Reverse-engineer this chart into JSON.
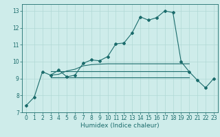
{
  "xlabel": "Humidex (Indice chaleur)",
  "xlim": [
    -0.5,
    23.5
  ],
  "ylim": [
    7,
    13.4
  ],
  "yticks": [
    7,
    8,
    9,
    10,
    11,
    12,
    13
  ],
  "xticks": [
    0,
    1,
    2,
    3,
    4,
    5,
    6,
    7,
    8,
    9,
    10,
    11,
    12,
    13,
    14,
    15,
    16,
    17,
    18,
    19,
    20,
    21,
    22,
    23
  ],
  "bg_color": "#ceecea",
  "grid_color": "#b0d8d5",
  "line_color": "#1a6b6b",
  "line1_x": [
    0,
    1,
    2,
    3,
    4,
    5,
    6,
    7,
    8,
    9,
    10,
    11,
    12,
    13,
    14,
    15,
    16,
    17,
    18,
    19,
    20,
    21,
    22,
    23
  ],
  "line1_y": [
    7.4,
    7.9,
    9.4,
    9.2,
    9.5,
    9.1,
    9.2,
    9.9,
    10.1,
    10.05,
    10.3,
    11.05,
    11.1,
    11.7,
    12.65,
    12.45,
    12.6,
    13.0,
    12.9,
    10.0,
    9.4,
    8.9,
    8.45,
    9.0
  ],
  "line2_x": [
    3,
    20
  ],
  "line2_y": [
    9.45,
    9.45
  ],
  "line3_x": [
    3,
    20
  ],
  "line3_y": [
    9.05,
    9.05
  ],
  "line4_x": [
    3,
    4,
    5,
    6,
    7,
    8,
    9,
    10,
    11,
    12,
    13,
    14,
    15,
    16,
    17,
    18,
    19,
    20
  ],
  "line4_y": [
    9.2,
    9.25,
    9.45,
    9.55,
    9.75,
    9.82,
    9.85,
    9.87,
    9.87,
    9.87,
    9.87,
    9.87,
    9.87,
    9.87,
    9.87,
    9.87,
    9.87,
    9.87
  ]
}
